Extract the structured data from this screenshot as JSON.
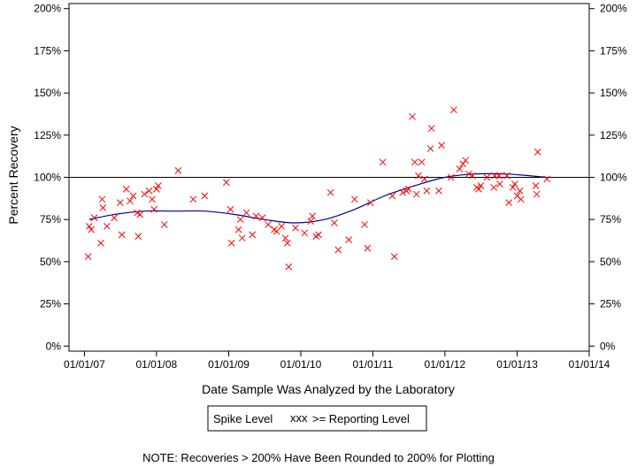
{
  "chart_data": {
    "type": "scatter",
    "xlabel": "Date Sample Was Analyzed by the Laboratory",
    "ylabel": "Percent Recovery",
    "x_ticks": [
      "01/01/07",
      "01/01/08",
      "01/01/09",
      "01/01/10",
      "01/01/11",
      "01/01/12",
      "01/01/13",
      "01/01/14"
    ],
    "y_ticks": [
      "0%",
      "25%",
      "50%",
      "75%",
      "100%",
      "125%",
      "150%",
      "175%",
      "200%"
    ],
    "xlim": [
      "2006-10-15",
      "2014-01-01"
    ],
    "ylim": [
      -3,
      203
    ],
    "reference_line": 100,
    "grid": false,
    "legend": {
      "position": "bottom-center",
      "spike_label": "Spike Level",
      "marker_glyph": "xxx",
      "reporting_label": ">= Reporting Level"
    },
    "note": "NOTE: Recoveries > 200% Have Been Rounded to 200% for Plotting",
    "colors": {
      "points": "#ff0000",
      "trend": "#00008b",
      "axes": "#000000"
    },
    "series": [
      {
        "kind": "points",
        "points": [
          [
            "2007-01-20",
            53
          ],
          [
            "2007-01-25",
            71
          ],
          [
            "2007-02-05",
            69
          ],
          [
            "2007-02-20",
            76
          ],
          [
            "2007-03-25",
            61
          ],
          [
            "2007-04-01",
            87
          ],
          [
            "2007-04-05",
            82
          ],
          [
            "2007-04-25",
            71
          ],
          [
            "2007-06-01",
            76
          ],
          [
            "2007-07-01",
            85
          ],
          [
            "2007-07-10",
            66
          ],
          [
            "2007-08-01",
            93
          ],
          [
            "2007-08-20",
            86
          ],
          [
            "2007-09-05",
            89
          ],
          [
            "2007-09-25",
            79
          ],
          [
            "2007-10-01",
            65
          ],
          [
            "2007-10-10",
            78
          ],
          [
            "2007-11-01",
            90
          ],
          [
            "2007-11-25",
            92
          ],
          [
            "2007-12-10",
            87
          ],
          [
            "2007-12-20",
            81
          ],
          [
            "2008-01-01",
            93
          ],
          [
            "2008-01-10",
            95
          ],
          [
            "2008-02-10",
            72
          ],
          [
            "2008-04-20",
            104
          ],
          [
            "2008-07-05",
            87
          ],
          [
            "2008-09-01",
            89
          ],
          [
            "2008-12-20",
            97
          ],
          [
            "2009-01-10",
            81
          ],
          [
            "2009-01-15",
            61
          ],
          [
            "2009-02-20",
            69
          ],
          [
            "2009-03-01",
            75
          ],
          [
            "2009-03-10",
            64
          ],
          [
            "2009-04-01",
            79
          ],
          [
            "2009-05-01",
            66
          ],
          [
            "2009-05-20",
            77
          ],
          [
            "2009-06-20",
            76
          ],
          [
            "2009-07-20",
            72
          ],
          [
            "2009-08-20",
            69
          ],
          [
            "2009-09-01",
            68
          ],
          [
            "2009-09-25",
            71
          ],
          [
            "2009-10-15",
            64
          ],
          [
            "2009-10-25",
            61
          ],
          [
            "2009-11-01",
            47
          ],
          [
            "2009-12-05",
            70
          ],
          [
            "2010-01-20",
            67
          ],
          [
            "2010-02-20",
            74
          ],
          [
            "2010-03-01",
            77
          ],
          [
            "2010-03-20",
            65
          ],
          [
            "2010-04-01",
            66
          ],
          [
            "2010-06-01",
            91
          ],
          [
            "2010-06-20",
            73
          ],
          [
            "2010-07-10",
            57
          ],
          [
            "2010-09-01",
            63
          ],
          [
            "2010-10-01",
            87
          ],
          [
            "2010-11-20",
            72
          ],
          [
            "2010-12-05",
            58
          ],
          [
            "2010-12-20",
            85
          ],
          [
            "2011-02-20",
            109
          ],
          [
            "2011-04-10",
            89
          ],
          [
            "2011-04-20",
            53
          ],
          [
            "2011-06-01",
            91
          ],
          [
            "2011-06-20",
            92
          ],
          [
            "2011-07-01",
            93
          ],
          [
            "2011-07-20",
            136
          ],
          [
            "2011-08-01",
            109
          ],
          [
            "2011-08-10",
            90
          ],
          [
            "2011-08-20",
            101
          ],
          [
            "2011-09-05",
            109
          ],
          [
            "2011-09-20",
            99
          ],
          [
            "2011-10-01",
            92
          ],
          [
            "2011-10-20",
            117
          ],
          [
            "2011-10-25",
            129
          ],
          [
            "2011-12-01",
            92
          ],
          [
            "2011-12-15",
            119
          ],
          [
            "2012-02-01",
            100
          ],
          [
            "2012-02-15",
            140
          ],
          [
            "2012-03-15",
            105
          ],
          [
            "2012-04-01",
            108
          ],
          [
            "2012-04-15",
            110
          ],
          [
            "2012-05-01",
            102
          ],
          [
            "2012-05-20",
            101
          ],
          [
            "2012-06-10",
            94
          ],
          [
            "2012-06-20",
            93
          ],
          [
            "2012-07-01",
            95
          ],
          [
            "2012-08-01",
            100
          ],
          [
            "2012-09-05",
            94
          ],
          [
            "2012-09-10",
            101
          ],
          [
            "2012-10-01",
            101
          ],
          [
            "2012-10-05",
            96
          ],
          [
            "2012-11-10",
            101
          ],
          [
            "2012-11-20",
            85
          ],
          [
            "2012-12-10",
            94
          ],
          [
            "2012-12-20",
            96
          ],
          [
            "2013-01-01",
            89
          ],
          [
            "2013-01-15",
            92
          ],
          [
            "2013-01-20",
            87
          ],
          [
            "2013-04-05",
            95
          ],
          [
            "2013-04-10",
            90
          ],
          [
            "2013-04-15",
            115
          ],
          [
            "2013-06-01",
            99
          ]
        ]
      },
      {
        "kind": "trend",
        "points": [
          [
            "2007-01-25",
            75
          ],
          [
            "2007-06-01",
            78
          ],
          [
            "2007-11-01",
            80
          ],
          [
            "2008-04-01",
            80
          ],
          [
            "2008-09-01",
            80
          ],
          [
            "2009-02-01",
            78
          ],
          [
            "2009-07-01",
            75
          ],
          [
            "2009-12-01",
            73
          ],
          [
            "2010-05-01",
            75
          ],
          [
            "2010-10-01",
            81
          ],
          [
            "2011-03-01",
            89
          ],
          [
            "2011-08-01",
            95
          ],
          [
            "2012-01-01",
            100
          ],
          [
            "2012-06-01",
            102
          ],
          [
            "2012-11-01",
            102
          ],
          [
            "2013-03-01",
            101
          ],
          [
            "2013-06-01",
            100
          ]
        ]
      }
    ]
  }
}
